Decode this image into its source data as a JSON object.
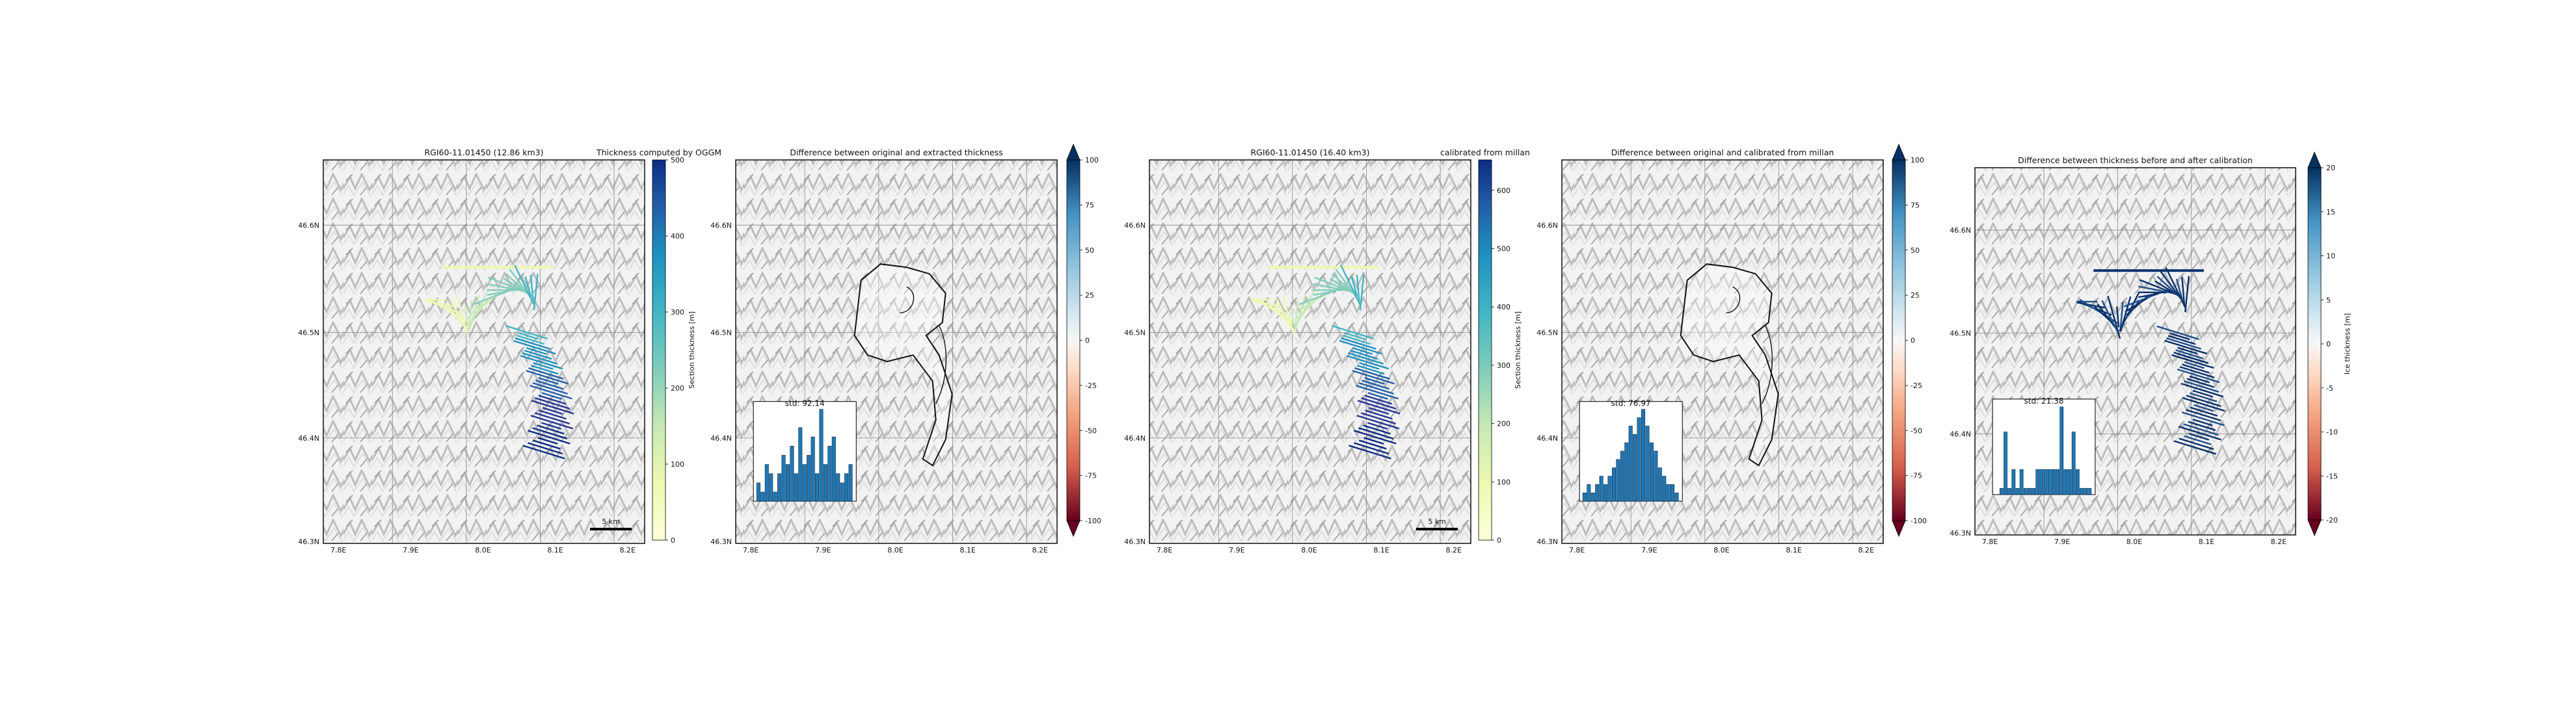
{
  "figure": {
    "background": "#ffffff"
  },
  "panels": [
    {
      "id": "p1",
      "title": "RGI60-11.01450 (12.86 km3)",
      "cbar_title": "Thickness computed by OGGM",
      "cbar_ylabel": "Section thickness [m]",
      "cbar_ticks": [
        "0",
        "100",
        "200",
        "300",
        "400",
        "500"
      ],
      "cbar_kind": "sequential",
      "xticks": [
        "7.8E",
        "7.9E",
        "8.0E",
        "8.1E",
        "8.2E"
      ],
      "yticks": [
        "46.6N",
        "46.5N",
        "46.4N",
        "46.3N"
      ],
      "scalebar_label": "5 km",
      "overlay": "sections-thickness",
      "inset_title": null,
      "inset_values": null
    },
    {
      "id": "p2",
      "title": "Difference between original and extracted thickness",
      "cbar_title": null,
      "cbar_ylabel": null,
      "cbar_ticks": [
        "100",
        "75",
        "50",
        "25",
        "0",
        "-25",
        "-50",
        "-75",
        "-100"
      ],
      "cbar_kind": "diverging",
      "xticks": [
        "7.8E",
        "7.9E",
        "8.0E",
        "8.1E",
        "8.2E"
      ],
      "yticks": [
        "46.6N",
        "46.5N",
        "46.4N",
        "46.3N"
      ],
      "scalebar_label": null,
      "overlay": "outline",
      "inset_title": "std: 92.14",
      "inset_values": [
        2,
        1,
        4,
        3,
        1,
        3,
        5,
        4,
        6,
        3,
        8,
        4,
        5,
        7,
        3,
        10,
        4,
        6,
        7,
        3,
        2,
        3,
        4
      ]
    },
    {
      "id": "p3",
      "title": "RGI60-11.01450 (16.40 km3)",
      "cbar_title": "calibrated from millan",
      "cbar_ylabel": "Section thickness [m]",
      "cbar_ticks": [
        "0",
        "100",
        "200",
        "300",
        "400",
        "500",
        "600"
      ],
      "cbar_kind": "sequential",
      "xticks": [
        "7.8E",
        "7.9E",
        "8.0E",
        "8.1E",
        "8.2E"
      ],
      "yticks": [
        "46.6N",
        "46.5N",
        "46.4N",
        "46.3N"
      ],
      "scalebar_label": "5 km",
      "overlay": "sections-thickness",
      "inset_title": null,
      "inset_values": null
    },
    {
      "id": "p4",
      "title": "Difference between original and calibrated from millan",
      "cbar_title": null,
      "cbar_ylabel": null,
      "cbar_ticks": [
        "100",
        "75",
        "50",
        "25",
        "0",
        "-25",
        "-50",
        "-75",
        "-100"
      ],
      "cbar_kind": "diverging",
      "xticks": [
        "7.8E",
        "7.9E",
        "8.0E",
        "8.1E",
        "8.2E"
      ],
      "yticks": [
        "46.6N",
        "46.5N",
        "46.4N",
        "46.3N"
      ],
      "scalebar_label": null,
      "overlay": "outline",
      "inset_title": "std: 76.97",
      "inset_values": [
        1,
        2,
        1,
        2,
        3,
        2,
        3,
        4,
        5,
        6,
        7,
        9,
        8,
        10,
        11,
        9,
        7,
        6,
        4,
        3,
        2,
        2,
        1
      ]
    },
    {
      "id": "p5",
      "title": "Difference between thickness before and after calibration",
      "cbar_title": null,
      "cbar_ylabel": "Ice thickness [m]",
      "cbar_ticks": [
        "20",
        "15",
        "10",
        "5",
        "0",
        "-5",
        "-10",
        "-15",
        "-20"
      ],
      "cbar_kind": "diverging",
      "xticks": [
        "7.8E",
        "7.9E",
        "8.0E",
        "8.1E",
        "8.2E"
      ],
      "yticks": [
        "46.6N",
        "46.5N",
        "46.4N",
        "46.3N"
      ],
      "scalebar_label": null,
      "overlay": "sections-diff",
      "inset_title": "std: 21.38",
      "inset_values": [
        0,
        1,
        10,
        1,
        4,
        1,
        4,
        1,
        1,
        1,
        4,
        4,
        4,
        4,
        4,
        4,
        14,
        4,
        4,
        10,
        4,
        1,
        1,
        1
      ]
    }
  ],
  "chart_data": [
    {
      "type": "map",
      "title": "RGI60-11.01450 (12.86 km3)",
      "colorbar_label": "Section thickness [m]",
      "colorbar_range": [
        0,
        500
      ],
      "x_ticks": [
        "7.8E",
        "7.9E",
        "8.0E",
        "8.1E",
        "8.2E"
      ],
      "y_ticks": [
        "46.6N",
        "46.5N",
        "46.4N",
        "46.3N"
      ]
    },
    {
      "type": "map",
      "title": "Difference between original and extracted thickness",
      "colorbar_range": [
        -100,
        100
      ],
      "inset": {
        "type": "bar",
        "title": "std: 92.14"
      }
    },
    {
      "type": "map",
      "title": "RGI60-11.01450 (16.40 km3)",
      "colorbar_label": "Section thickness [m]",
      "colorbar_range": [
        0,
        650
      ]
    },
    {
      "type": "map",
      "title": "Difference between original and calibrated from millan",
      "colorbar_range": [
        -100,
        100
      ],
      "inset": {
        "type": "bar",
        "title": "std: 76.97"
      }
    },
    {
      "type": "map",
      "title": "Difference between thickness before and after calibration",
      "colorbar_label": "Ice thickness [m]",
      "colorbar_range": [
        -20,
        20
      ],
      "inset": {
        "type": "bar",
        "title": "std: 21.38"
      }
    }
  ]
}
